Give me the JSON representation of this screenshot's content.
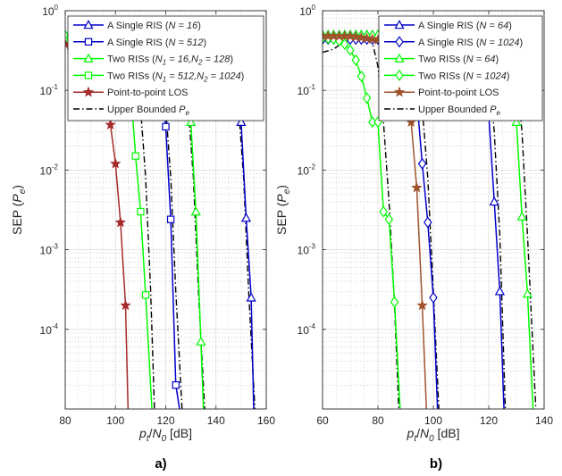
{
  "chart_data": [
    {
      "type": "line",
      "panel_label": "a)",
      "ylabel_main": "SEP (",
      "ylabel_var": "P",
      "ylabel_sub": "e",
      "ylabel_close": ")",
      "xlabel_p": "p",
      "xlabel_t": "t",
      "xlabel_slash": "/",
      "xlabel_N": "N",
      "xlabel_0": "0",
      "xlabel_unit": " [dB]",
      "xlim": [
        80,
        160
      ],
      "ylim": [
        1e-05,
        1
      ],
      "yscale": "log",
      "xticks": [
        80,
        100,
        120,
        140,
        160
      ],
      "ytick_labels": [
        {
          "value": 1,
          "base": "10",
          "exp": "0"
        },
        {
          "value": 0.1,
          "base": "10",
          "exp": "-1"
        },
        {
          "value": 0.01,
          "base": "10",
          "exp": "-2"
        },
        {
          "value": 0.001,
          "base": "10",
          "exp": "-3"
        },
        {
          "value": 0.0001,
          "base": "10",
          "exp": "-4"
        }
      ],
      "grid": true,
      "legend_position": "top-right",
      "series": [
        {
          "name": "Upper Bounded Pe",
          "color": "#000000",
          "dash": "dashdot",
          "marker": "none",
          "legend": false,
          "x": [
            80,
            100,
            104,
            106,
            108,
            110,
            112,
            114,
            115.5
          ],
          "y": [
            0.5,
            0.5,
            0.45,
            0.35,
            0.2,
            0.06,
            0.008,
            0.0003,
            1e-05
          ]
        },
        {
          "name": "Upper Bounded Pe",
          "color": "#000000",
          "dash": "dashdot",
          "marker": "none",
          "legend": false,
          "x": [
            80,
            110,
            114,
            116,
            118,
            120,
            122,
            124,
            126.5
          ],
          "y": [
            0.5,
            0.5,
            0.45,
            0.35,
            0.2,
            0.06,
            0.008,
            0.0003,
            1e-05
          ]
        },
        {
          "name": "Upper Bounded Pe",
          "color": "#000000",
          "dash": "dashdot",
          "marker": "none",
          "legend": false,
          "x": [
            80,
            119,
            123,
            125,
            127,
            129,
            131,
            133,
            135.5
          ],
          "y": [
            0.5,
            0.5,
            0.45,
            0.35,
            0.2,
            0.06,
            0.008,
            0.0003,
            1e-05
          ]
        },
        {
          "name": "Upper Bounded Pe",
          "color": "#000000",
          "dash": "dashdot",
          "marker": "none",
          "legend": false,
          "x": [
            80,
            139,
            143,
            145,
            147,
            149,
            151,
            153,
            155.5
          ],
          "y": [
            0.5,
            0.5,
            0.45,
            0.35,
            0.2,
            0.06,
            0.008,
            0.0003,
            1e-05
          ]
        },
        {
          "name": "A Single RIS (N = 16)",
          "color": "#0000cc",
          "marker": "triangle",
          "x": [
            80,
            82,
            84,
            86,
            88,
            90,
            92,
            94,
            96,
            98,
            100,
            102,
            104,
            106,
            108,
            110,
            112,
            114,
            116,
            118,
            120,
            122,
            124,
            126,
            128,
            130,
            132,
            134,
            136,
            138,
            140,
            142,
            144,
            146,
            148,
            150,
            152,
            154,
            155
          ],
          "y": [
            0.5,
            0.5,
            0.5,
            0.5,
            0.5,
            0.5,
            0.5,
            0.5,
            0.5,
            0.5,
            0.5,
            0.5,
            0.5,
            0.5,
            0.5,
            0.5,
            0.5,
            0.5,
            0.5,
            0.5,
            0.5,
            0.5,
            0.5,
            0.5,
            0.5,
            0.5,
            0.5,
            0.5,
            0.5,
            0.49,
            0.48,
            0.44,
            0.38,
            0.27,
            0.14,
            0.04,
            0.0025,
            0.00025,
            1e-05
          ]
        },
        {
          "name": "A Single RIS (N = 512)",
          "color": "#0000cc",
          "marker": "square",
          "x": [
            80,
            82,
            84,
            86,
            88,
            90,
            92,
            94,
            96,
            98,
            100,
            102,
            104,
            106,
            108,
            110,
            112,
            114,
            116,
            118,
            120,
            122,
            124,
            125.5
          ],
          "y": [
            0.43,
            0.42,
            0.41,
            0.41,
            0.41,
            0.41,
            0.41,
            0.41,
            0.41,
            0.41,
            0.41,
            0.41,
            0.41,
            0.41,
            0.41,
            0.41,
            0.4,
            0.36,
            0.27,
            0.14,
            0.035,
            0.0024,
            2e-05,
            1e-05
          ]
        },
        {
          "name": "Two RISs (N1 = 16,N2 = 128)",
          "color": "#00ff00",
          "marker": "triangle",
          "x": [
            80,
            82,
            84,
            86,
            88,
            90,
            92,
            94,
            96,
            98,
            100,
            102,
            104,
            106,
            108,
            110,
            112,
            114,
            116,
            118,
            120,
            122,
            124,
            126,
            128,
            130,
            132,
            134,
            135
          ],
          "y": [
            0.5,
            0.5,
            0.5,
            0.5,
            0.5,
            0.5,
            0.5,
            0.5,
            0.5,
            0.5,
            0.5,
            0.5,
            0.5,
            0.5,
            0.5,
            0.5,
            0.5,
            0.5,
            0.5,
            0.5,
            0.5,
            0.49,
            0.45,
            0.38,
            0.24,
            0.04,
            0.003,
            7e-05,
            1e-05
          ]
        },
        {
          "name": "Two RISs (N1 = 512,N2 = 1024)",
          "color": "#00ff00",
          "marker": "square",
          "x": [
            80,
            82,
            84,
            86,
            88,
            90,
            92,
            94,
            96,
            98,
            100,
            102,
            104,
            106,
            108,
            110,
            112,
            114.5
          ],
          "y": [
            0.42,
            0.42,
            0.41,
            0.41,
            0.41,
            0.41,
            0.41,
            0.41,
            0.41,
            0.4,
            0.38,
            0.33,
            0.23,
            0.11,
            0.015,
            0.003,
            0.00027,
            1e-05
          ]
        },
        {
          "name": "Point-to-point LOS",
          "color": "#a52a2a",
          "marker": "star",
          "x": [
            80,
            82,
            84,
            86,
            88,
            90,
            92,
            94,
            96,
            98,
            100,
            102,
            104,
            105
          ],
          "y": [
            0.38,
            0.37,
            0.37,
            0.37,
            0.37,
            0.36,
            0.34,
            0.3,
            0.2,
            0.037,
            0.012,
            0.0022,
            0.0002,
            1e-05
          ]
        },
        {
          "name": "Upper Bounded Pe",
          "color": "#000000",
          "dash": "dashdot",
          "marker": "none",
          "legend_only": true,
          "x": [],
          "y": []
        }
      ],
      "legend": [
        {
          "base": "A Single RIS (",
          "italic": "N = 16",
          "close": ")"
        },
        {
          "base": "A Single RIS (",
          "italic": "N = 512",
          "close": ")"
        },
        {
          "base": "Two RISs (",
          "italic": "N",
          "sub1": "1",
          "mid": " = 16,",
          "italic2": "N",
          "sub2": "2",
          "end": " = 128",
          "close": ")"
        },
        {
          "base": "Two RISs (",
          "italic": "N",
          "sub1": "1",
          "mid": " = 512,",
          "italic2": "N",
          "sub2": "2",
          "end": " = 1024",
          "close": ")"
        },
        {
          "base": "Point-to-point LOS"
        },
        {
          "base": "Upper Bounded ",
          "italic": "P",
          "sub1": "e"
        }
      ]
    },
    {
      "type": "line",
      "panel_label": "b)",
      "ylabel_main": "SEP (",
      "ylabel_var": "P",
      "ylabel_sub": "e",
      "ylabel_close": ")",
      "xlabel_p": "p",
      "xlabel_t": "t",
      "xlabel_slash": "/",
      "xlabel_N": "N",
      "xlabel_0": "0",
      "xlabel_unit": " [dB]",
      "xlim": [
        60,
        140
      ],
      "ylim": [
        1e-05,
        1
      ],
      "yscale": "log",
      "xticks": [
        60,
        80,
        100,
        120,
        140
      ],
      "ytick_labels": [
        {
          "value": 1,
          "base": "10",
          "exp": "0"
        },
        {
          "value": 0.1,
          "base": "10",
          "exp": "-1"
        },
        {
          "value": 0.01,
          "base": "10",
          "exp": "-2"
        },
        {
          "value": 0.001,
          "base": "10",
          "exp": "-3"
        },
        {
          "value": 0.0001,
          "base": "10",
          "exp": "-4"
        }
      ],
      "grid": true,
      "legend_position": "top-right",
      "series": [
        {
          "name": "Upper Bounded Pe",
          "color": "#000000",
          "dash": "dashdot",
          "marker": "none",
          "legend": false,
          "x": [
            60,
            64,
            66,
            68,
            70,
            72,
            74,
            76,
            78,
            80,
            82,
            84,
            86,
            87.5
          ],
          "y": [
            0.3,
            0.33,
            0.37,
            0.42,
            0.47,
            0.5,
            0.5,
            0.48,
            0.4,
            0.2,
            0.04,
            0.004,
            0.0002,
            1e-05
          ]
        },
        {
          "name": "Upper Bounded Pe",
          "color": "#000000",
          "dash": "dashdot",
          "marker": "none",
          "legend": false,
          "x": [
            60,
            88,
            90,
            92,
            94,
            96,
            98,
            100,
            102
          ],
          "y": [
            0.5,
            0.5,
            0.45,
            0.35,
            0.2,
            0.06,
            0.008,
            0.0003,
            1e-05
          ]
        },
        {
          "name": "Upper Bounded Pe",
          "color": "#000000",
          "dash": "dashdot",
          "marker": "none",
          "legend": false,
          "x": [
            60,
            112,
            116,
            118,
            120,
            122,
            124,
            126
          ],
          "y": [
            0.5,
            0.5,
            0.45,
            0.35,
            0.2,
            0.03,
            0.0015,
            1e-05
          ]
        },
        {
          "name": "Upper Bounded Pe",
          "color": "#000000",
          "dash": "dashdot",
          "marker": "none",
          "legend": false,
          "x": [
            60,
            122,
            126,
            128,
            130,
            132,
            134,
            137
          ],
          "y": [
            0.5,
            0.5,
            0.45,
            0.35,
            0.2,
            0.03,
            0.0015,
            1e-05
          ]
        },
        {
          "name": "A Single RIS (N = 64)",
          "color": "#0000cc",
          "marker": "triangle",
          "x": [
            60,
            62,
            64,
            66,
            68,
            70,
            72,
            74,
            76,
            78,
            80,
            82,
            84,
            86,
            88,
            90,
            92,
            94,
            96,
            98,
            100,
            102,
            104,
            106,
            108,
            110,
            112,
            114,
            116,
            118,
            120,
            122,
            124,
            125.5
          ],
          "y": [
            0.5,
            0.5,
            0.5,
            0.5,
            0.5,
            0.5,
            0.5,
            0.5,
            0.5,
            0.5,
            0.5,
            0.5,
            0.5,
            0.5,
            0.5,
            0.5,
            0.5,
            0.5,
            0.5,
            0.5,
            0.5,
            0.5,
            0.5,
            0.5,
            0.5,
            0.5,
            0.49,
            0.45,
            0.38,
            0.25,
            0.05,
            0.004,
            0.0003,
            1e-05
          ]
        },
        {
          "name": "A Single RIS (N = 1024)",
          "color": "#0000cc",
          "marker": "diamond",
          "x": [
            60,
            62,
            64,
            66,
            68,
            70,
            72,
            74,
            76,
            78,
            80,
            82,
            84,
            86,
            88,
            90,
            92,
            94,
            96,
            98,
            100,
            101.5
          ],
          "y": [
            0.44,
            0.44,
            0.44,
            0.44,
            0.44,
            0.44,
            0.44,
            0.44,
            0.44,
            0.44,
            0.44,
            0.44,
            0.43,
            0.42,
            0.4,
            0.35,
            0.22,
            0.08,
            0.012,
            0.0022,
            0.00025,
            1e-05
          ]
        },
        {
          "name": "Two RISs (N = 64)",
          "color": "#00ff00",
          "marker": "triangle",
          "x": [
            60,
            62,
            64,
            66,
            68,
            70,
            72,
            74,
            76,
            78,
            80,
            82,
            84,
            86,
            88,
            90,
            92,
            94,
            96,
            98,
            100,
            102,
            104,
            106,
            108,
            110,
            112,
            114,
            116,
            118,
            120,
            122,
            124,
            126,
            128,
            130,
            132,
            134,
            136
          ],
          "y": [
            0.5,
            0.5,
            0.5,
            0.5,
            0.5,
            0.5,
            0.5,
            0.5,
            0.5,
            0.5,
            0.5,
            0.5,
            0.5,
            0.5,
            0.5,
            0.5,
            0.5,
            0.5,
            0.5,
            0.5,
            0.5,
            0.5,
            0.5,
            0.5,
            0.5,
            0.5,
            0.5,
            0.5,
            0.5,
            0.5,
            0.5,
            0.5,
            0.49,
            0.45,
            0.38,
            0.04,
            0.0026,
            0.00028,
            1e-05
          ]
        },
        {
          "name": "Two RISs (N = 1024)",
          "color": "#00ff00",
          "marker": "diamond",
          "x": [
            60,
            62,
            64,
            66,
            68,
            70,
            72,
            74,
            76,
            78,
            80,
            82,
            84,
            86,
            88
          ],
          "y": [
            0.46,
            0.45,
            0.44,
            0.42,
            0.38,
            0.32,
            0.24,
            0.15,
            0.08,
            0.04,
            0.04,
            0.003,
            0.0024,
            0.00022,
            1e-05
          ]
        },
        {
          "name": "Point-to-point LOS",
          "color": "#a0522d",
          "marker": "star",
          "x": [
            60,
            62,
            64,
            66,
            68,
            70,
            72,
            74,
            76,
            78,
            80,
            82,
            84,
            86,
            88,
            90,
            92,
            94,
            96,
            97.5
          ],
          "y": [
            0.48,
            0.48,
            0.48,
            0.48,
            0.48,
            0.48,
            0.47,
            0.46,
            0.45,
            0.44,
            0.43,
            0.42,
            0.4,
            0.36,
            0.3,
            0.2,
            0.04,
            0.006,
            0.0002,
            1e-05
          ]
        },
        {
          "name": "Upper Bounded Pe",
          "color": "#000000",
          "dash": "dashdot",
          "marker": "none",
          "legend_only": true,
          "x": [],
          "y": []
        }
      ],
      "legend": [
        {
          "base": "A Single RIS (",
          "italic": "N = 64",
          "close": ")"
        },
        {
          "base": "A Single RIS (",
          "italic": "N = 1024",
          "close": ")"
        },
        {
          "base": "Two RISs (",
          "italic": "N = 64",
          "close": ")"
        },
        {
          "base": "Two RISs (",
          "italic": "N = 1024",
          "close": ")"
        },
        {
          "base": "Point-to-point LOS"
        },
        {
          "base": "Upper Bounded ",
          "italic": "P",
          "sub1": "e"
        }
      ]
    }
  ]
}
